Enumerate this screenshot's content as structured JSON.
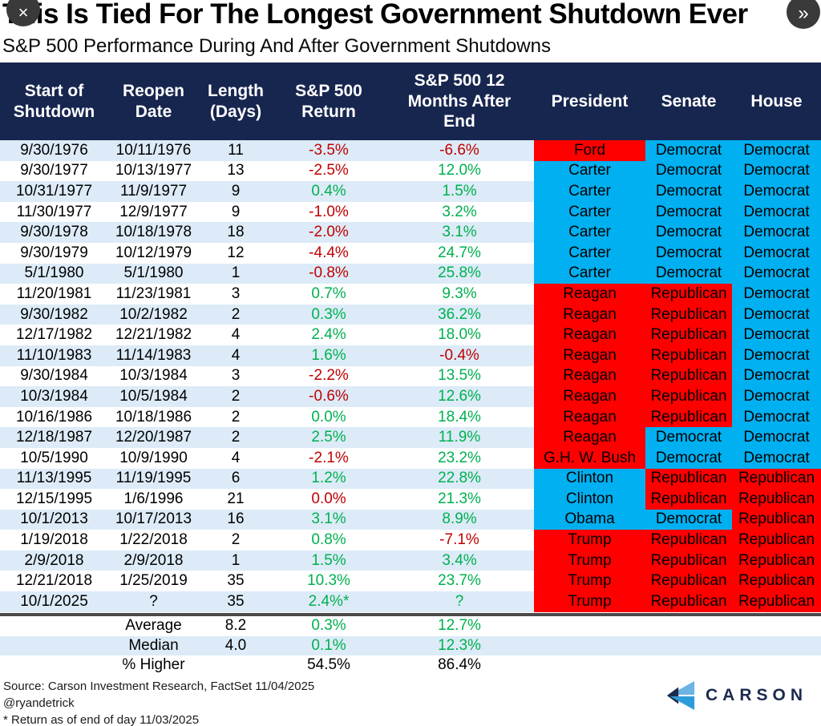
{
  "viewer": {
    "close_icon": "×",
    "forward_icon": "»"
  },
  "chart_data": {
    "type": "table",
    "title": "This Is Tied For The Longest Government Shutdown Ever",
    "subtitle": "S&P 500 Performance During And After Government Shutdowns",
    "columns": [
      "Start of Shutdown",
      "Reopen Date",
      "Length (Days)",
      "S&P 500 Return",
      "S&P 500 12 Months After End",
      "President",
      "Senate",
      "House"
    ],
    "party_colors": {
      "R": "#FF0000",
      "D": "#00B0F0"
    },
    "value_colors": {
      "pos": "#00B050",
      "neg": "#C00000",
      "plain": "#000000"
    },
    "row_stripe_colors": [
      "#DCEBF7",
      "#FFFFFF"
    ],
    "header_bg": "#17264F",
    "rows": [
      {
        "start": "9/30/1976",
        "reopen": "10/11/1976",
        "days": "11",
        "ret": "-3.5%",
        "ret_dir": "neg",
        "after": "-6.6%",
        "after_dir": "neg",
        "president": "Ford",
        "pres_party": "R",
        "senate": "Democrat",
        "senate_party": "D",
        "house": "Democrat",
        "house_party": "D"
      },
      {
        "start": "9/30/1977",
        "reopen": "10/13/1977",
        "days": "13",
        "ret": "-2.5%",
        "ret_dir": "neg",
        "after": "12.0%",
        "after_dir": "pos",
        "president": "Carter",
        "pres_party": "D",
        "senate": "Democrat",
        "senate_party": "D",
        "house": "Democrat",
        "house_party": "D"
      },
      {
        "start": "10/31/1977",
        "reopen": "11/9/1977",
        "days": "9",
        "ret": "0.4%",
        "ret_dir": "pos",
        "after": "1.5%",
        "after_dir": "pos",
        "president": "Carter",
        "pres_party": "D",
        "senate": "Democrat",
        "senate_party": "D",
        "house": "Democrat",
        "house_party": "D"
      },
      {
        "start": "11/30/1977",
        "reopen": "12/9/1977",
        "days": "9",
        "ret": "-1.0%",
        "ret_dir": "neg",
        "after": "3.2%",
        "after_dir": "pos",
        "president": "Carter",
        "pres_party": "D",
        "senate": "Democrat",
        "senate_party": "D",
        "house": "Democrat",
        "house_party": "D"
      },
      {
        "start": "9/30/1978",
        "reopen": "10/18/1978",
        "days": "18",
        "ret": "-2.0%",
        "ret_dir": "neg",
        "after": "3.1%",
        "after_dir": "pos",
        "president": "Carter",
        "pres_party": "D",
        "senate": "Democrat",
        "senate_party": "D",
        "house": "Democrat",
        "house_party": "D"
      },
      {
        "start": "9/30/1979",
        "reopen": "10/12/1979",
        "days": "12",
        "ret": "-4.4%",
        "ret_dir": "neg",
        "after": "24.7%",
        "after_dir": "pos",
        "president": "Carter",
        "pres_party": "D",
        "senate": "Democrat",
        "senate_party": "D",
        "house": "Democrat",
        "house_party": "D"
      },
      {
        "start": "5/1/1980",
        "reopen": "5/1/1980",
        "days": "1",
        "ret": "-0.8%",
        "ret_dir": "neg",
        "after": "25.8%",
        "after_dir": "pos",
        "president": "Carter",
        "pres_party": "D",
        "senate": "Democrat",
        "senate_party": "D",
        "house": "Democrat",
        "house_party": "D"
      },
      {
        "start": "11/20/1981",
        "reopen": "11/23/1981",
        "days": "3",
        "ret": "0.7%",
        "ret_dir": "pos",
        "after": "9.3%",
        "after_dir": "pos",
        "president": "Reagan",
        "pres_party": "R",
        "senate": "Republican",
        "senate_party": "R",
        "house": "Democrat",
        "house_party": "D"
      },
      {
        "start": "9/30/1982",
        "reopen": "10/2/1982",
        "days": "2",
        "ret": "0.3%",
        "ret_dir": "pos",
        "after": "36.2%",
        "after_dir": "pos",
        "president": "Reagan",
        "pres_party": "R",
        "senate": "Republican",
        "senate_party": "R",
        "house": "Democrat",
        "house_party": "D"
      },
      {
        "start": "12/17/1982",
        "reopen": "12/21/1982",
        "days": "4",
        "ret": "2.4%",
        "ret_dir": "pos",
        "after": "18.0%",
        "after_dir": "pos",
        "president": "Reagan",
        "pres_party": "R",
        "senate": "Republican",
        "senate_party": "R",
        "house": "Democrat",
        "house_party": "D"
      },
      {
        "start": "11/10/1983",
        "reopen": "11/14/1983",
        "days": "4",
        "ret": "1.6%",
        "ret_dir": "pos",
        "after": "-0.4%",
        "after_dir": "neg",
        "president": "Reagan",
        "pres_party": "R",
        "senate": "Republican",
        "senate_party": "R",
        "house": "Democrat",
        "house_party": "D"
      },
      {
        "start": "9/30/1984",
        "reopen": "10/3/1984",
        "days": "3",
        "ret": "-2.2%",
        "ret_dir": "neg",
        "after": "13.5%",
        "after_dir": "pos",
        "president": "Reagan",
        "pres_party": "R",
        "senate": "Republican",
        "senate_party": "R",
        "house": "Democrat",
        "house_party": "D"
      },
      {
        "start": "10/3/1984",
        "reopen": "10/5/1984",
        "days": "2",
        "ret": "-0.6%",
        "ret_dir": "neg",
        "after": "12.6%",
        "after_dir": "pos",
        "president": "Reagan",
        "pres_party": "R",
        "senate": "Republican",
        "senate_party": "R",
        "house": "Democrat",
        "house_party": "D"
      },
      {
        "start": "10/16/1986",
        "reopen": "10/18/1986",
        "days": "2",
        "ret": "0.0%",
        "ret_dir": "pos",
        "after": "18.4%",
        "after_dir": "pos",
        "president": "Reagan",
        "pres_party": "R",
        "senate": "Republican",
        "senate_party": "R",
        "house": "Democrat",
        "house_party": "D"
      },
      {
        "start": "12/18/1987",
        "reopen": "12/20/1987",
        "days": "2",
        "ret": "2.5%",
        "ret_dir": "pos",
        "after": "11.9%",
        "after_dir": "pos",
        "president": "Reagan",
        "pres_party": "R",
        "senate": "Democrat",
        "senate_party": "D",
        "house": "Democrat",
        "house_party": "D"
      },
      {
        "start": "10/5/1990",
        "reopen": "10/9/1990",
        "days": "4",
        "ret": "-2.1%",
        "ret_dir": "neg",
        "after": "23.2%",
        "after_dir": "pos",
        "president": "G.H. W. Bush",
        "pres_party": "R",
        "senate": "Democrat",
        "senate_party": "D",
        "house": "Democrat",
        "house_party": "D"
      },
      {
        "start": "11/13/1995",
        "reopen": "11/19/1995",
        "days": "6",
        "ret": "1.2%",
        "ret_dir": "pos",
        "after": "22.8%",
        "after_dir": "pos",
        "president": "Clinton",
        "pres_party": "D",
        "senate": "Republican",
        "senate_party": "R",
        "house": "Republican",
        "house_party": "R"
      },
      {
        "start": "12/15/1995",
        "reopen": "1/6/1996",
        "days": "21",
        "ret": "0.0%",
        "ret_dir": "neg",
        "after": "21.3%",
        "after_dir": "pos",
        "president": "Clinton",
        "pres_party": "D",
        "senate": "Republican",
        "senate_party": "R",
        "house": "Republican",
        "house_party": "R"
      },
      {
        "start": "10/1/2013",
        "reopen": "10/17/2013",
        "days": "16",
        "ret": "3.1%",
        "ret_dir": "pos",
        "after": "8.9%",
        "after_dir": "pos",
        "president": "Obama",
        "pres_party": "D",
        "senate": "Democrat",
        "senate_party": "D",
        "house": "Republican",
        "house_party": "R"
      },
      {
        "start": "1/19/2018",
        "reopen": "1/22/2018",
        "days": "2",
        "ret": "0.8%",
        "ret_dir": "pos",
        "after": "-7.1%",
        "after_dir": "neg",
        "president": "Trump",
        "pres_party": "R",
        "senate": "Republican",
        "senate_party": "R",
        "house": "Republican",
        "house_party": "R"
      },
      {
        "start": "2/9/2018",
        "reopen": "2/9/2018",
        "days": "1",
        "ret": "1.5%",
        "ret_dir": "pos",
        "after": "3.4%",
        "after_dir": "pos",
        "president": "Trump",
        "pres_party": "R",
        "senate": "Republican",
        "senate_party": "R",
        "house": "Republican",
        "house_party": "R"
      },
      {
        "start": "12/21/2018",
        "reopen": "1/25/2019",
        "days": "35",
        "ret": "10.3%",
        "ret_dir": "pos",
        "after": "23.7%",
        "after_dir": "pos",
        "president": "Trump",
        "pres_party": "R",
        "senate": "Republican",
        "senate_party": "R",
        "house": "Republican",
        "house_party": "R"
      },
      {
        "start": "10/1/2025",
        "reopen": "?",
        "days": "35",
        "ret": "2.4%*",
        "ret_dir": "pos",
        "after": "?",
        "after_dir": "pos",
        "president": "Trump",
        "pres_party": "R",
        "senate": "Republican",
        "senate_party": "R",
        "house": "Republican",
        "house_party": "R"
      }
    ],
    "summary": [
      {
        "label": "Average",
        "days": "8.2",
        "ret": "0.3%",
        "ret_dir": "pos",
        "after": "12.7%",
        "after_dir": "pos"
      },
      {
        "label": "Median",
        "days": "4.0",
        "ret": "0.1%",
        "ret_dir": "pos",
        "after": "12.3%",
        "after_dir": "pos"
      },
      {
        "label": "% Higher",
        "days": "",
        "ret": "54.5%",
        "ret_dir": "plain",
        "after": "86.4%",
        "after_dir": "plain"
      }
    ]
  },
  "footer": {
    "source": "Source: Carson Investment Research, FactSet 11/04/2025",
    "handle": "@ryandetrick",
    "note": "* Return as of end of day 11/03/2025"
  },
  "logo": {
    "text": "CARSON"
  }
}
